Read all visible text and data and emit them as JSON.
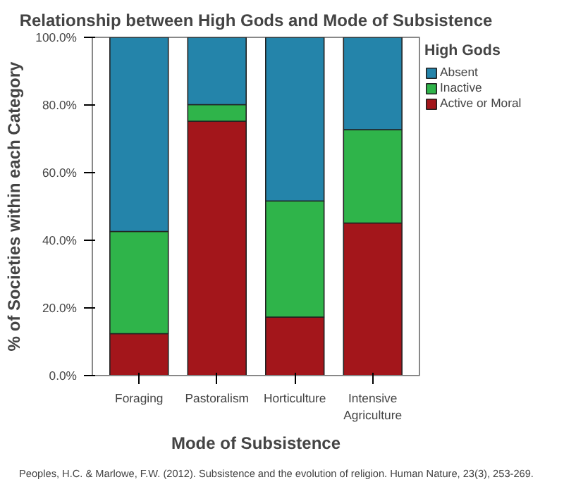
{
  "chart_data": {
    "type": "bar",
    "stacked": true,
    "title": "Relationship between High Gods and Mode of Subsistence",
    "xlabel": "Mode of Subsistence",
    "ylabel": "% of Societies within each Category",
    "legend_title": "High Gods",
    "legend": "top right",
    "grid": false,
    "categories": [
      "Foraging",
      "Pastoralism",
      "Horticulture",
      "Intensive Agriculture"
    ],
    "series": [
      {
        "name": "Active or Moral",
        "color": "#a3161b",
        "values": [
          12.4,
          75.2,
          17.3,
          45.1
        ]
      },
      {
        "name": "Inactive",
        "color": "#2fb44a",
        "values": [
          30.2,
          4.9,
          34.3,
          27.6
        ]
      },
      {
        "name": "Absent",
        "color": "#2484aa",
        "values": [
          57.4,
          19.9,
          48.4,
          27.3
        ]
      }
    ],
    "ylim": [
      0,
      100
    ],
    "yticks": [
      {
        "value": 0,
        "label": "0.0%"
      },
      {
        "value": 20,
        "label": "20.0%"
      },
      {
        "value": 40,
        "label": "40.0%"
      },
      {
        "value": 60,
        "label": "60.0%"
      },
      {
        "value": 80,
        "label": "80.0%"
      },
      {
        "value": 100,
        "label": "100.0%"
      }
    ],
    "annotations": [
      "Peoples, H.C. & Marlowe, F.W. (2012). Subsistence and the evolution of religion. Human Nature, 23(3), 253-269."
    ]
  }
}
